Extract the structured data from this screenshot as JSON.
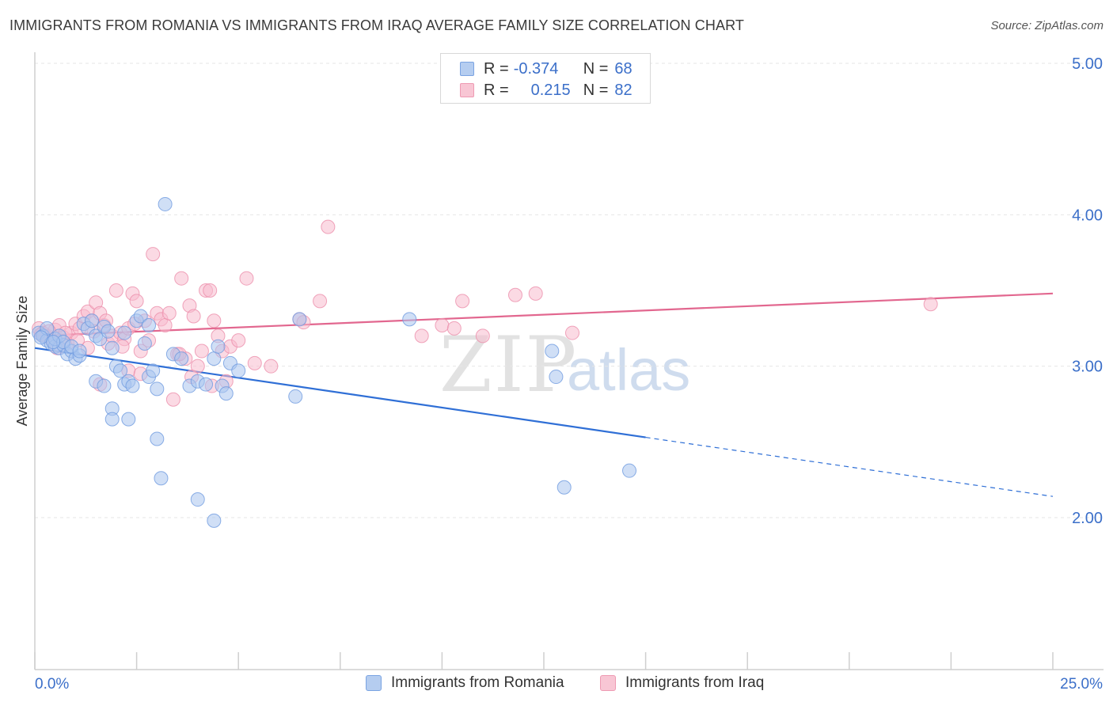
{
  "header": {
    "title": "IMMIGRANTS FROM ROMANIA VS IMMIGRANTS FROM IRAQ AVERAGE FAMILY SIZE CORRELATION CHART",
    "source": "Source: ZipAtlas.com"
  },
  "watermark": {
    "zip": "ZIP",
    "atlas": "atlas"
  },
  "legend_top": {
    "rows": [
      {
        "r_label": "R =",
        "r_value": "-0.374",
        "n_label": "N =",
        "n_value": "68"
      },
      {
        "r_label": "R =",
        "r_value": "0.215",
        "n_label": "N =",
        "n_value": "82"
      }
    ]
  },
  "colors": {
    "romania_fill": "#a9c5ee",
    "romania_stroke": "#6f9be0",
    "romania_line": "#2f6fd6",
    "iraq_fill": "#f7bccd",
    "iraq_stroke": "#ec8fab",
    "iraq_line": "#e2678f",
    "tick_label": "#3b6fc9",
    "grid": "#e6e6e6"
  },
  "chart_data": {
    "type": "scatter",
    "title": "IMMIGRANTS FROM ROMANIA VS IMMIGRANTS FROM IRAQ AVERAGE FAMILY SIZE CORRELATION CHART",
    "xlabel": "",
    "ylabel": "Average Family Size",
    "xlim": [
      0,
      25
    ],
    "ylim": [
      1.0,
      5.1
    ],
    "x_tick_labels": [
      "0.0%",
      "25.0%"
    ],
    "y_ticks": [
      2.0,
      3.0,
      4.0,
      5.0
    ],
    "y_tick_labels": [
      "2.00",
      "3.00",
      "4.00",
      "5.00"
    ],
    "grid": true,
    "legend_position": "bottom",
    "series": [
      {
        "name": "Immigrants from Romania",
        "r": -0.374,
        "n": 68,
        "trend": {
          "x0": 0,
          "y0": 3.12,
          "x1": 15,
          "y1": 2.53,
          "dash_to_x": 25,
          "dash_to_y": 2.14
        },
        "points": [
          [
            0.1,
            3.22
          ],
          [
            0.2,
            3.2
          ],
          [
            0.3,
            3.17
          ],
          [
            0.4,
            3.15
          ],
          [
            0.5,
            3.13
          ],
          [
            0.6,
            3.12
          ],
          [
            0.7,
            3.14
          ],
          [
            0.8,
            3.08
          ],
          [
            0.9,
            3.1
          ],
          [
            1.0,
            3.05
          ],
          [
            1.1,
            3.07
          ],
          [
            1.2,
            3.28
          ],
          [
            1.3,
            3.25
          ],
          [
            1.4,
            3.3
          ],
          [
            1.5,
            3.2
          ],
          [
            1.6,
            3.18
          ],
          [
            1.7,
            3.26
          ],
          [
            1.8,
            3.23
          ],
          [
            1.9,
            3.12
          ],
          [
            2.0,
            3.0
          ],
          [
            2.1,
            2.97
          ],
          [
            2.2,
            2.88
          ],
          [
            2.3,
            2.9
          ],
          [
            2.4,
            2.87
          ],
          [
            2.5,
            3.3
          ],
          [
            2.6,
            3.33
          ],
          [
            2.7,
            3.15
          ],
          [
            2.8,
            2.93
          ],
          [
            2.9,
            2.97
          ],
          [
            3.0,
            2.85
          ],
          [
            3.2,
            4.07
          ],
          [
            3.4,
            3.08
          ],
          [
            3.6,
            3.05
          ],
          [
            3.8,
            2.87
          ],
          [
            4.0,
            2.9
          ],
          [
            4.2,
            2.88
          ],
          [
            4.4,
            3.05
          ],
          [
            4.5,
            3.13
          ],
          [
            4.6,
            2.87
          ],
          [
            4.7,
            2.82
          ],
          [
            4.8,
            3.02
          ],
          [
            5.0,
            2.97
          ],
          [
            1.9,
            2.72
          ],
          [
            2.3,
            2.65
          ],
          [
            1.9,
            2.65
          ],
          [
            3.0,
            2.52
          ],
          [
            3.1,
            2.26
          ],
          [
            4.0,
            2.12
          ],
          [
            4.4,
            1.98
          ],
          [
            6.5,
            3.31
          ],
          [
            6.4,
            2.8
          ],
          [
            9.2,
            3.31
          ],
          [
            12.7,
            3.1
          ],
          [
            12.8,
            2.93
          ],
          [
            13.0,
            2.2
          ],
          [
            14.6,
            2.31
          ],
          [
            0.3,
            3.25
          ],
          [
            0.5,
            3.18
          ],
          [
            0.6,
            3.2
          ],
          [
            0.7,
            3.16
          ],
          [
            0.9,
            3.13
          ],
          [
            1.1,
            3.1
          ],
          [
            1.5,
            2.9
          ],
          [
            1.7,
            2.87
          ],
          [
            2.2,
            3.22
          ],
          [
            2.8,
            3.27
          ],
          [
            0.15,
            3.19
          ],
          [
            0.45,
            3.16
          ]
        ]
      },
      {
        "name": "Immigrants from Iraq",
        "r": 0.215,
        "n": 82,
        "trend": {
          "x0": 0,
          "y0": 3.2,
          "x1": 25,
          "y1": 3.48
        },
        "points": [
          [
            0.1,
            3.25
          ],
          [
            0.2,
            3.22
          ],
          [
            0.3,
            3.2
          ],
          [
            0.4,
            3.18
          ],
          [
            0.5,
            3.24
          ],
          [
            0.6,
            3.27
          ],
          [
            0.7,
            3.19
          ],
          [
            0.8,
            3.15
          ],
          [
            0.9,
            3.22
          ],
          [
            1.0,
            3.28
          ],
          [
            1.1,
            3.25
          ],
          [
            1.2,
            3.33
          ],
          [
            1.3,
            3.36
          ],
          [
            1.4,
            3.3
          ],
          [
            1.5,
            3.42
          ],
          [
            1.6,
            3.35
          ],
          [
            1.7,
            3.27
          ],
          [
            1.8,
            3.15
          ],
          [
            1.9,
            3.2
          ],
          [
            2.0,
            3.5
          ],
          [
            2.1,
            3.22
          ],
          [
            2.2,
            3.18
          ],
          [
            2.3,
            3.25
          ],
          [
            2.4,
            3.48
          ],
          [
            2.5,
            3.43
          ],
          [
            2.6,
            3.1
          ],
          [
            2.7,
            3.3
          ],
          [
            2.8,
            3.17
          ],
          [
            2.9,
            3.74
          ],
          [
            3.0,
            3.35
          ],
          [
            3.1,
            3.31
          ],
          [
            3.2,
            3.27
          ],
          [
            3.3,
            3.35
          ],
          [
            3.4,
            2.78
          ],
          [
            3.5,
            3.08
          ],
          [
            3.6,
            3.58
          ],
          [
            3.7,
            3.05
          ],
          [
            3.8,
            3.4
          ],
          [
            3.9,
            3.33
          ],
          [
            4.0,
            3.0
          ],
          [
            4.1,
            3.1
          ],
          [
            4.2,
            3.5
          ],
          [
            4.3,
            3.5
          ],
          [
            4.4,
            3.3
          ],
          [
            4.5,
            3.2
          ],
          [
            4.6,
            3.1
          ],
          [
            4.7,
            2.9
          ],
          [
            4.8,
            3.13
          ],
          [
            5.0,
            3.17
          ],
          [
            5.2,
            3.58
          ],
          [
            5.4,
            3.02
          ],
          [
            5.8,
            3.0
          ],
          [
            6.5,
            3.31
          ],
          [
            6.6,
            3.29
          ],
          [
            7.0,
            3.43
          ],
          [
            7.2,
            3.92
          ],
          [
            9.5,
            3.2
          ],
          [
            10.0,
            3.27
          ],
          [
            10.3,
            3.25
          ],
          [
            10.5,
            3.43
          ],
          [
            11.0,
            3.2
          ],
          [
            11.8,
            3.47
          ],
          [
            12.3,
            3.48
          ],
          [
            13.2,
            3.22
          ],
          [
            22.0,
            3.41
          ],
          [
            1.3,
            3.12
          ],
          [
            1.6,
            2.88
          ],
          [
            2.3,
            2.97
          ],
          [
            2.6,
            2.95
          ],
          [
            0.25,
            3.2
          ],
          [
            0.55,
            3.12
          ],
          [
            0.75,
            3.22
          ],
          [
            1.05,
            3.17
          ],
          [
            1.45,
            3.23
          ],
          [
            1.75,
            3.3
          ],
          [
            2.15,
            3.13
          ],
          [
            2.45,
            3.28
          ],
          [
            3.55,
            3.08
          ],
          [
            3.85,
            2.93
          ],
          [
            4.35,
            2.87
          ],
          [
            0.35,
            3.23
          ],
          [
            0.15,
            3.21
          ]
        ]
      }
    ]
  }
}
